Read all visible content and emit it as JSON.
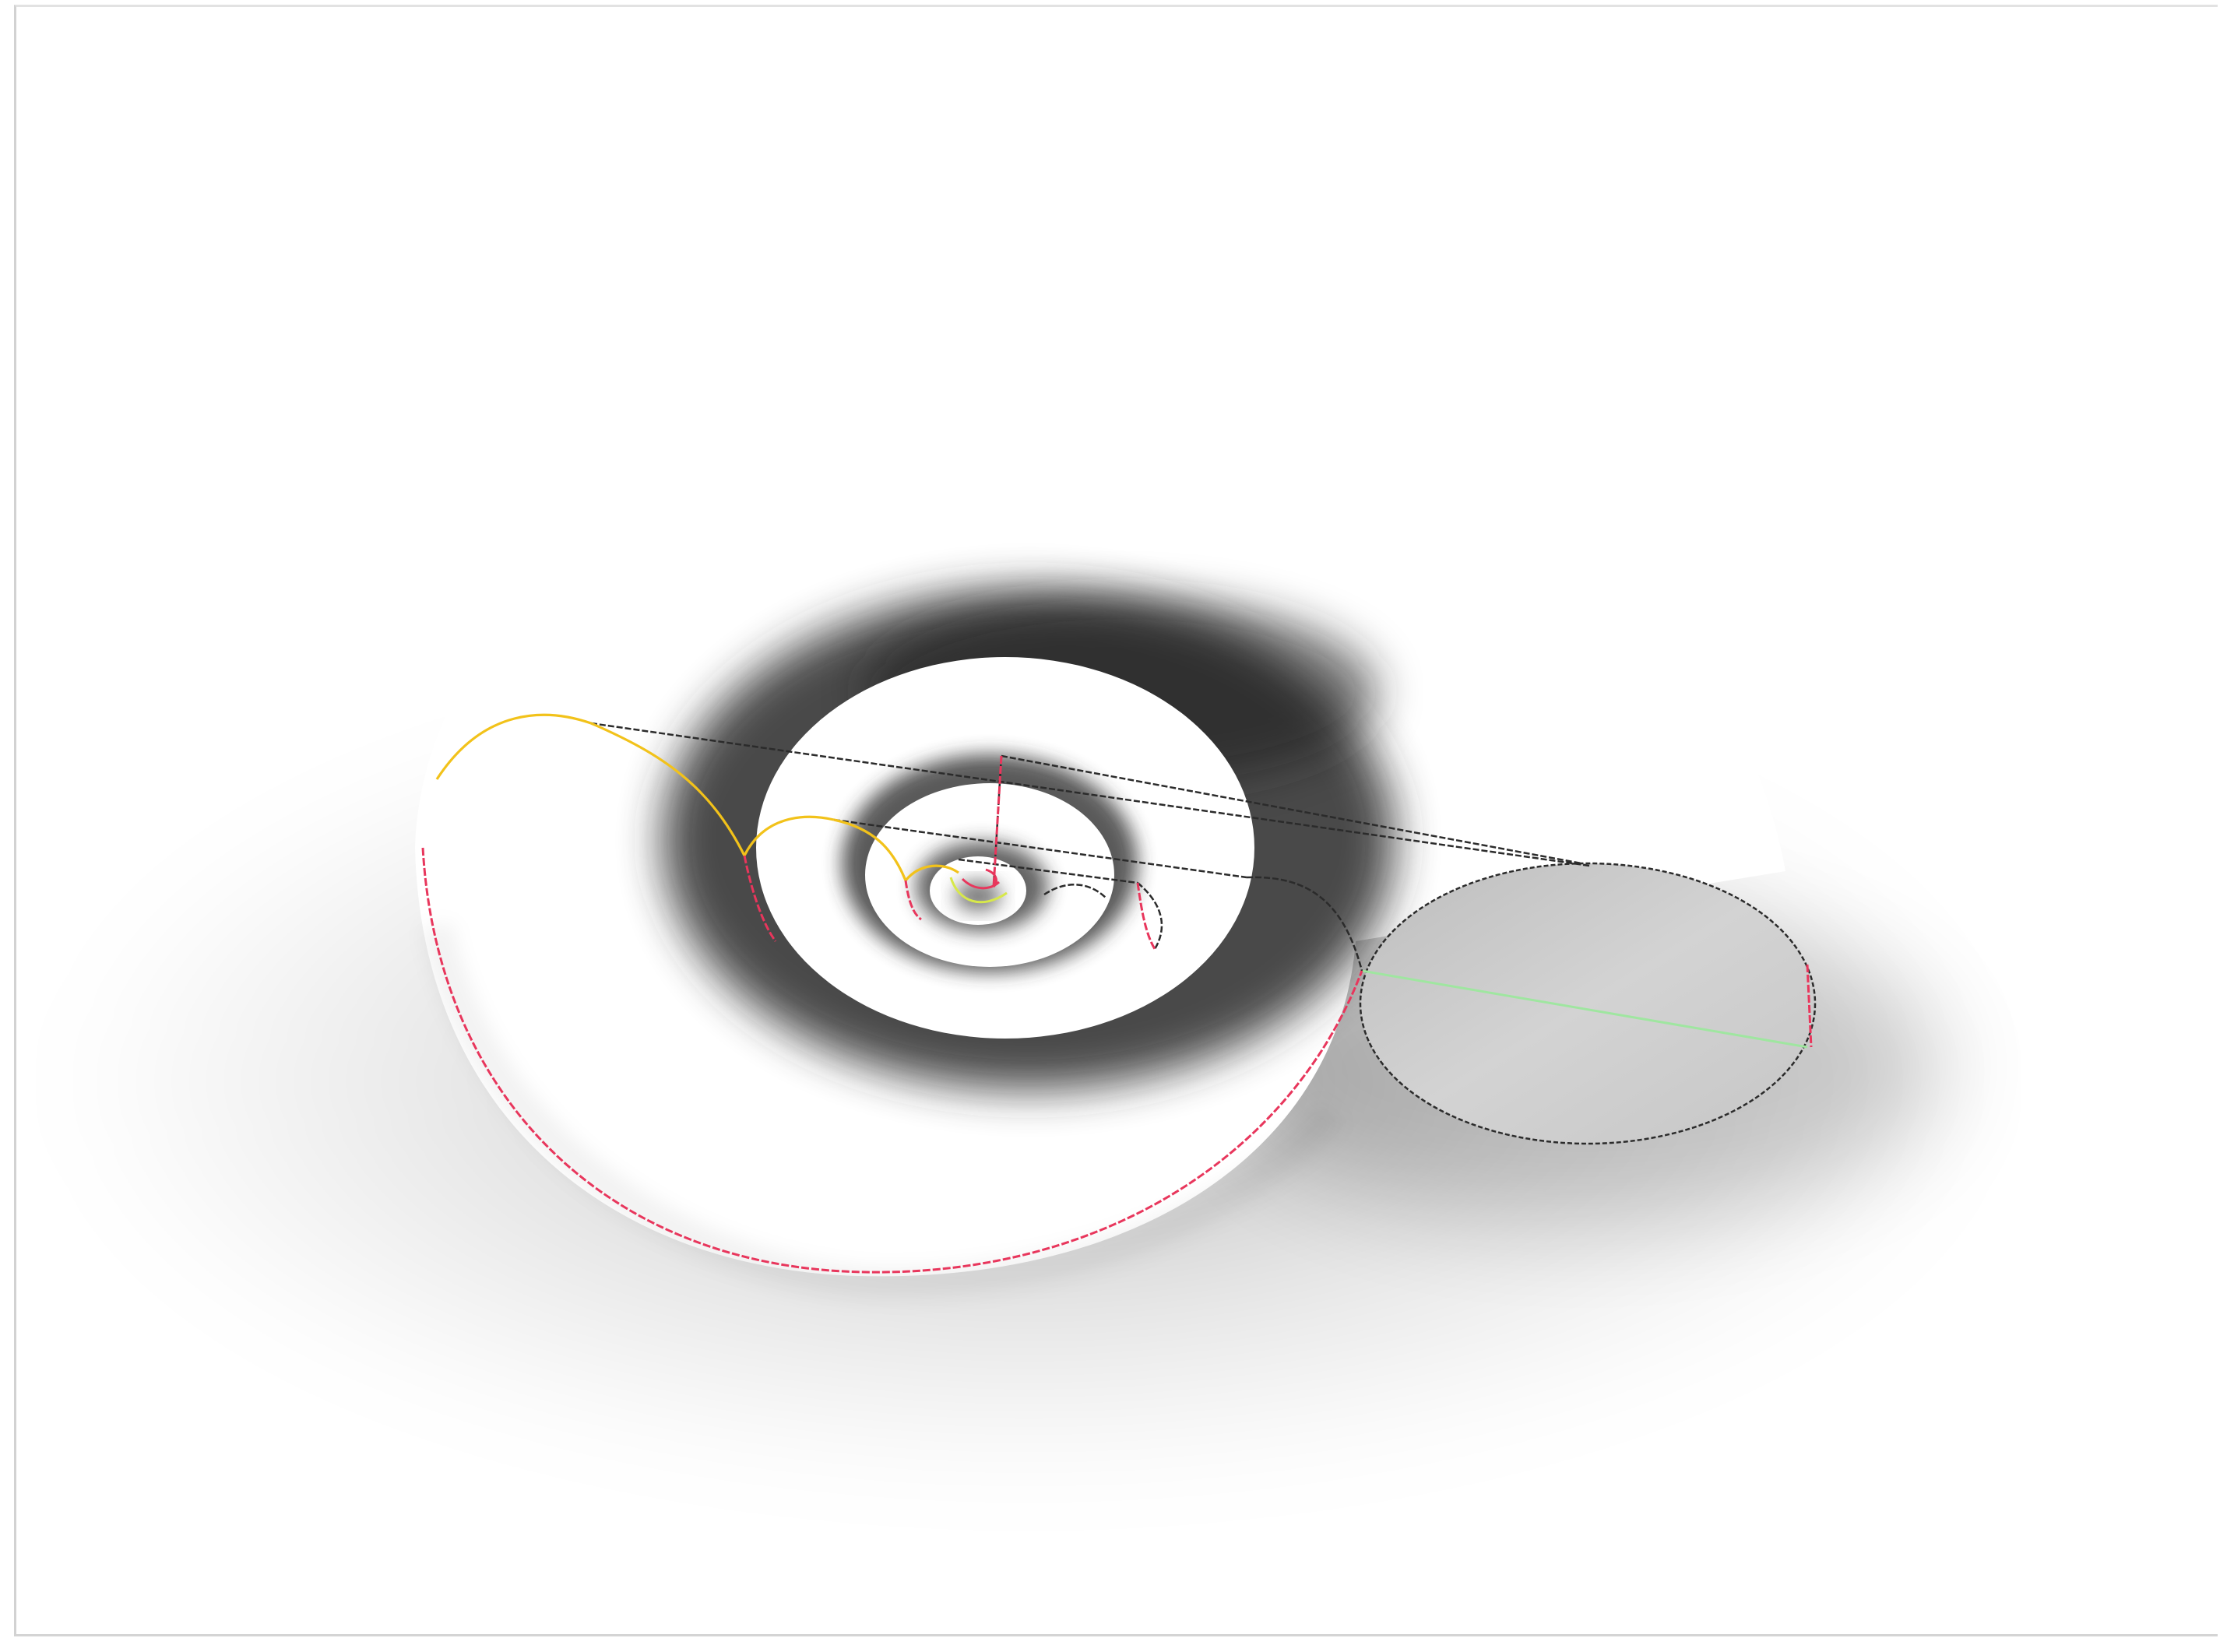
{
  "viewport": {
    "background": "#ffffff",
    "border_color": "#d2d2d2"
  },
  "shell": {
    "surface_color": "#ffffff",
    "shadow_color": "#2a2a2a",
    "aperture_fill": "#c9c9c9",
    "wire_color": "#2b2b2b"
  },
  "curves": {
    "growth_arcs_color": "#f2c21a",
    "outer_edge_color": "#e8365c",
    "axis_color": "#9fe6a0",
    "spiral_core_color": "#d7e84a"
  }
}
